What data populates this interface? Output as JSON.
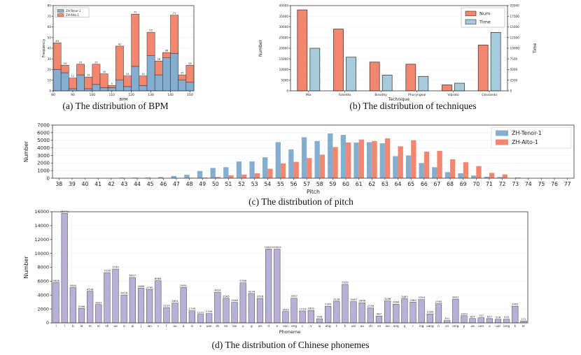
{
  "figure": {
    "captions": {
      "a": "(a) The distribution of BPM",
      "b": "(b) The distribution of techniques",
      "c": "(c) The distribution of pitch",
      "d": "(d) The distribution of Chinese phonemes"
    }
  },
  "colors": {
    "tenor_blue": "#84ADCF",
    "alto_red": "#F3866F",
    "time_blue": "#A8CBDC",
    "num_red": "#F3866F",
    "phoneme_purple": "#B9B0D8",
    "grid": "#d8d8d8",
    "bar_edge": "#2b2b2b"
  },
  "chart_data": [
    {
      "id": "bpm",
      "type": "bar",
      "stacked": true,
      "xlabel": "BPM",
      "ylabel": "Frequency",
      "ylim": [
        0,
        80
      ],
      "ytick_step": 10,
      "xticks": [
        80,
        90,
        100,
        110,
        120,
        130,
        140,
        150
      ],
      "bin_start": 80,
      "bin_width": 4,
      "series": [
        {
          "name": "ZH-Tenor-1",
          "color": "tenor_blue",
          "values": [
            20,
            17,
            2,
            15,
            2,
            6,
            3,
            3,
            10,
            4,
            23,
            5,
            33,
            15,
            31,
            35,
            10,
            8
          ]
        },
        {
          "name": "ZH-Alto-1",
          "color": "alto_red",
          "values": [
            25,
            7,
            10,
            10,
            11,
            19,
            13,
            2,
            32,
            10,
            49,
            9,
            22,
            13,
            5,
            36,
            5,
            16
          ]
        }
      ],
      "totals": [
        45,
        24,
        12,
        25,
        13,
        25,
        16,
        5,
        42,
        14,
        72,
        14,
        55,
        28,
        36,
        71,
        15,
        24
      ],
      "legend_position": "top-left"
    },
    {
      "id": "techniques",
      "type": "bar",
      "dual_axis": true,
      "categories": [
        "Mix",
        "Falsetto",
        "Breathy",
        "Pharyngeal",
        "Vibrato",
        "Glissando"
      ],
      "xlabel": "Technique",
      "ylabel_left": "Number",
      "ylabel_right": "Time",
      "ylim_left": [
        0,
        40000
      ],
      "ytick_step_left": 5000,
      "ylim_right": [
        0,
        20000
      ],
      "ytick_step_right": 2500,
      "series": [
        {
          "name": "Num",
          "axis": "left",
          "color": "num_red",
          "values": [
            38000,
            29000,
            13500,
            12500,
            2800,
            21500
          ]
        },
        {
          "name": "Time",
          "axis": "right",
          "color": "time_blue",
          "values": [
            10000,
            7900,
            3700,
            3400,
            1800,
            13700
          ]
        }
      ],
      "legend_position": "top-right"
    },
    {
      "id": "pitch",
      "type": "bar",
      "grouped": true,
      "x": [
        38,
        39,
        40,
        41,
        42,
        43,
        44,
        45,
        46,
        47,
        48,
        49,
        50,
        51,
        52,
        53,
        54,
        55,
        56,
        57,
        58,
        59,
        60,
        61,
        62,
        63,
        64,
        65,
        66,
        67,
        68,
        69,
        70,
        71,
        72,
        73,
        74,
        75,
        76,
        77
      ],
      "xlabel": "Pitch",
      "ylabel": "Number",
      "ylim": [
        0,
        7000
      ],
      "ytick_step": 1000,
      "series": [
        {
          "name": "ZH-Tenor-1",
          "color": "tenor_blue",
          "values": [
            0,
            0,
            0,
            20,
            40,
            80,
            80,
            100,
            150,
            300,
            450,
            950,
            1350,
            1450,
            2200,
            2200,
            2750,
            4750,
            3800,
            5400,
            4900,
            5900,
            5700,
            4700,
            4750,
            4600,
            2900,
            3000,
            2000,
            1450,
            800,
            650,
            350,
            200,
            150,
            0,
            0,
            0,
            0,
            0
          ]
        },
        {
          "name": "ZH-Alto-1",
          "color": "alto_red",
          "values": [
            0,
            0,
            0,
            0,
            0,
            0,
            0,
            0,
            0,
            30,
            60,
            90,
            160,
            380,
            480,
            650,
            1250,
            1950,
            2150,
            2650,
            3100,
            4100,
            4700,
            5100,
            4900,
            5250,
            4200,
            5000,
            3500,
            3600,
            2500,
            2100,
            1600,
            700,
            500,
            90,
            40,
            25,
            0,
            0
          ]
        }
      ],
      "legend_position": "top-right"
    },
    {
      "id": "phonemes",
      "type": "bar",
      "categories": [
        "l",
        "i",
        "b",
        "ie",
        "m",
        "ei",
        "sh",
        "uo",
        "z",
        "ai",
        "j",
        "ian",
        "s",
        "f",
        "ou",
        "a",
        "in",
        "x",
        "uan",
        "zh",
        "en",
        "iao",
        "u",
        "g",
        "an",
        "d",
        "e",
        "van",
        "eng",
        "c",
        "v",
        "ia",
        "ong",
        "t",
        "h",
        "uei",
        "ao",
        "ch",
        "ve",
        "iou",
        "ang",
        "q",
        "r",
        "ing",
        "uang",
        "n",
        "vn",
        "iang",
        "p",
        "ua",
        "uen",
        "o",
        "uai",
        "iong",
        "k",
        "er"
      ],
      "values": [
        5806,
        15771,
        5084,
        2086,
        4549,
        2637,
        7226,
        7747,
        4016,
        6527,
        4989,
        4795,
        6084,
        2210,
        2851,
        5091,
        1739,
        1231,
        1339,
        4424,
        3545,
        2948,
        5766,
        4234,
        3518,
        10623,
        10615,
        1633,
        3557,
        1715,
        1801,
        596,
        2393,
        3128,
        5535,
        3063,
        2898,
        2156,
        987,
        3156,
        2694,
        3483,
        2984,
        3359,
        1289,
        2765,
        341,
        3421,
        1029,
        627,
        737,
        617,
        516,
        532,
        2403,
        271
      ],
      "xlabel": "Phoneme",
      "ylabel": "Number",
      "ylim": [
        0,
        16000
      ],
      "ytick_step": 2000,
      "show_value_labels": true
    }
  ]
}
